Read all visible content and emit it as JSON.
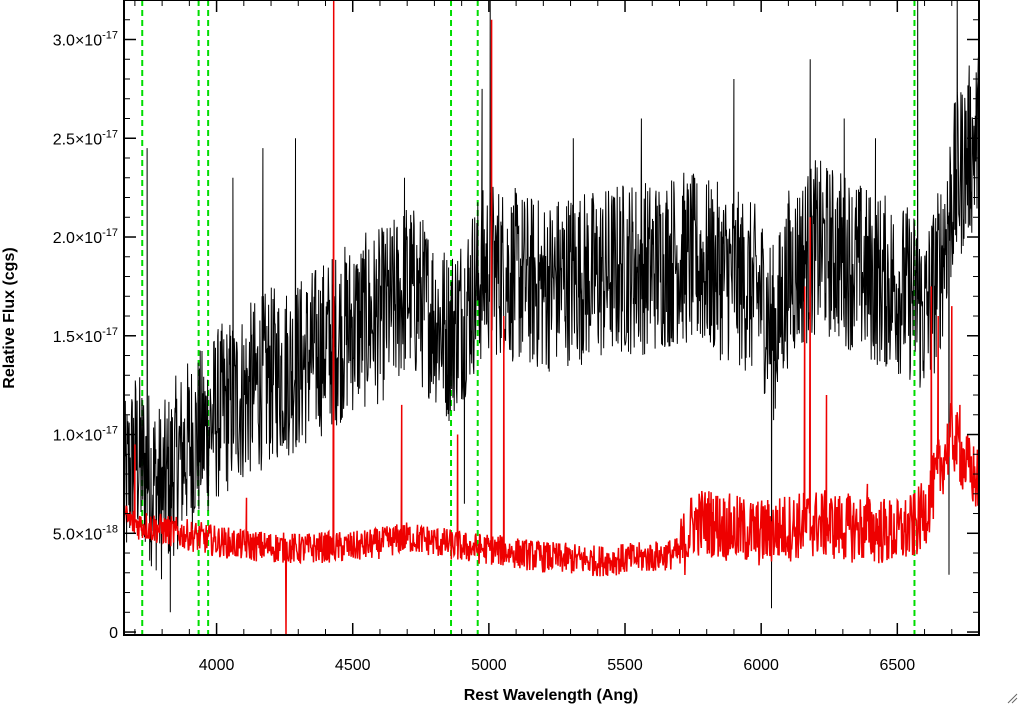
{
  "chart_data": {
    "type": "line",
    "title": "",
    "xlabel": "Rest Wavelength (Ang)",
    "ylabel": "Relative Flux (cgs)",
    "xlim": [
      3660,
      6800
    ],
    "ylim": [
      -1.5e-19,
      3.2e-17
    ],
    "x_ticks": [
      4000,
      4500,
      5000,
      5500,
      6000,
      6500
    ],
    "x_tick_labels": [
      "4000",
      "4500",
      "5000",
      "5500",
      "6000",
      "6500"
    ],
    "y_ticks": [
      {
        "value": 0,
        "mantissa": "0",
        "exponent": ""
      },
      {
        "value": 5e-18,
        "mantissa": "5.0×10",
        "exponent": "-18"
      },
      {
        "value": 1e-17,
        "mantissa": "1.0×10",
        "exponent": "-17"
      },
      {
        "value": 1.5e-17,
        "mantissa": "1.5×10",
        "exponent": "-17"
      },
      {
        "value": 2e-17,
        "mantissa": "2.0×10",
        "exponent": "-17"
      },
      {
        "value": 2.5e-17,
        "mantissa": "2.5×10",
        "exponent": "-17"
      },
      {
        "value": 3e-17,
        "mantissa": "3.0×10",
        "exponent": "-17"
      }
    ],
    "grid": false,
    "reference_lines": {
      "color": "#00dd00",
      "style": "dashed",
      "x": [
        3727,
        3934,
        3969,
        4861,
        4959,
        6563
      ]
    },
    "series": [
      {
        "color": "#000000",
        "x": [
          3660,
          3700,
          3750,
          3800,
          3850,
          3900,
          3950,
          4000,
          4100,
          4200,
          4300,
          4400,
          4500,
          4600,
          4650,
          4700,
          4800,
          4850,
          4900,
          4950,
          5000,
          5100,
          5200,
          5300,
          5400,
          5500,
          5600,
          5700,
          5800,
          5900,
          6000,
          6050,
          6100,
          6200,
          6300,
          6400,
          6500,
          6560,
          6600,
          6650,
          6700,
          6750,
          6800
        ],
        "y": [
          7e-18,
          9e-18,
          8e-18,
          7e-18,
          8.5e-18,
          9.5e-18,
          1e-17,
          1.1e-17,
          1.2e-17,
          1.3e-17,
          1.35e-17,
          1.45e-17,
          1.55e-17,
          1.6e-17,
          1.65e-17,
          1.75e-17,
          1.6e-17,
          1.5e-17,
          1.6e-17,
          1.75e-17,
          1.85e-17,
          1.8e-17,
          1.75e-17,
          1.8e-17,
          1.8e-17,
          1.85e-17,
          1.85e-17,
          1.9e-17,
          1.85e-17,
          1.8e-17,
          1.7e-17,
          1.5e-17,
          1.8e-17,
          1.95e-17,
          1.9e-17,
          1.8e-17,
          1.75e-17,
          1.7e-17,
          1.6e-17,
          1.8e-17,
          2.2e-17,
          2.4e-17,
          2.5e-17
        ],
        "noise": 4.5e-18,
        "spikes": [
          {
            "x": 3745,
            "y": 2.45e-17
          },
          {
            "x": 3830,
            "y": 1e-18
          },
          {
            "x": 4060,
            "y": 2.3e-17
          },
          {
            "x": 4170,
            "y": 2.45e-17
          },
          {
            "x": 4290,
            "y": 2.5e-17
          },
          {
            "x": 4690,
            "y": 2.3e-17
          },
          {
            "x": 4910,
            "y": 6.5e-18
          },
          {
            "x": 4975,
            "y": 2.75e-17
          },
          {
            "x": 5005,
            "y": 3.2e-17
          },
          {
            "x": 5310,
            "y": 2.5e-17
          },
          {
            "x": 5560,
            "y": 2.6e-17
          },
          {
            "x": 5900,
            "y": 2.8e-17
          },
          {
            "x": 6038,
            "y": 1.2e-18
          },
          {
            "x": 6180,
            "y": 2.9e-17
          },
          {
            "x": 6305,
            "y": 2.6e-17
          },
          {
            "x": 6420,
            "y": 2.5e-17
          },
          {
            "x": 6575,
            "y": 3.2e-17
          },
          {
            "x": 6690,
            "y": 2.9e-18
          },
          {
            "x": 6720,
            "y": 3.2e-17
          },
          {
            "x": 6760,
            "y": 2.5e-17
          }
        ]
      },
      {
        "color": "#ee0000",
        "x": [
          3660,
          3700,
          3800,
          3900,
          4000,
          4100,
          4200,
          4300,
          4400,
          4500,
          4600,
          4700,
          4800,
          4900,
          5000,
          5100,
          5200,
          5300,
          5400,
          5500,
          5600,
          5700,
          5750,
          5800,
          5900,
          6000,
          6100,
          6200,
          6300,
          6400,
          6500,
          6560,
          6600,
          6650,
          6700,
          6750,
          6800
        ],
        "y": [
          5.8e-18,
          5.5e-18,
          5.2e-18,
          4.9e-18,
          4.6e-18,
          4.4e-18,
          4.3e-18,
          4.2e-18,
          4.3e-18,
          4.3e-18,
          4.5e-18,
          4.8e-18,
          4.6e-18,
          4.3e-18,
          4.2e-18,
          4e-18,
          3.8e-18,
          3.7e-18,
          3.6e-18,
          3.7e-18,
          3.8e-18,
          4e-18,
          5.5e-18,
          5.6e-18,
          5.2e-18,
          5e-18,
          5.3e-18,
          5.5e-18,
          5.3e-18,
          5.2e-18,
          5e-18,
          5.3e-18,
          6e-18,
          8e-18,
          1e-17,
          8.5e-18,
          7.5e-18
        ],
        "noise": 8e-19,
        "spikes": [
          {
            "x": 3700,
            "y": 9.5e-18
          },
          {
            "x": 4110,
            "y": 6.8e-18
          },
          {
            "x": 4255,
            "y": -1.5e-19
          },
          {
            "x": 4430,
            "y": 3.2e-17
          },
          {
            "x": 4680,
            "y": 1.15e-17
          },
          {
            "x": 4885,
            "y": 1e-17
          },
          {
            "x": 5010,
            "y": 3.1e-17
          },
          {
            "x": 5055,
            "y": 1.6e-17
          },
          {
            "x": 6160,
            "y": 1.75e-17
          },
          {
            "x": 6180,
            "y": 2.1e-17
          },
          {
            "x": 6240,
            "y": 1.2e-17
          },
          {
            "x": 6390,
            "y": 7.5e-18
          },
          {
            "x": 6625,
            "y": 1.75e-17
          },
          {
            "x": 6650,
            "y": 1.6e-17
          },
          {
            "x": 6700,
            "y": 1.65e-17
          },
          {
            "x": 6730,
            "y": 1.15e-17
          }
        ]
      }
    ]
  }
}
